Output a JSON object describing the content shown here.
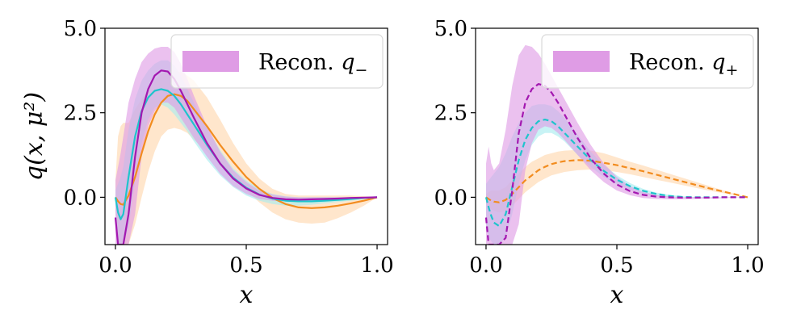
{
  "chart_data": [
    {
      "type": "line",
      "panel": "left",
      "xlabel": "x",
      "ylabel": "q(x, μ²)",
      "xlim": [
        -0.04,
        1.04
      ],
      "ylim": [
        -1.4,
        5.0
      ],
      "xticks": [
        0.0,
        0.5,
        1.0
      ],
      "xtick_labels": [
        "0.0",
        "0.5",
        "1.0"
      ],
      "yticks": [
        0.0,
        2.5,
        5.0
      ],
      "ytick_labels": [
        "0.0",
        "2.5",
        "5.0"
      ],
      "legend": {
        "label": "Recon. ",
        "symbol": "q",
        "subscript": "−",
        "placement": "top-right",
        "color": "#d98be0"
      },
      "x": [
        0.0,
        0.01,
        0.02,
        0.03,
        0.05,
        0.075,
        0.1,
        0.125,
        0.15,
        0.175,
        0.2,
        0.225,
        0.25,
        0.275,
        0.3,
        0.35,
        0.4,
        0.45,
        0.5,
        0.55,
        0.6,
        0.65,
        0.7,
        0.75,
        0.8,
        0.85,
        0.9,
        0.95,
        1.0
      ],
      "series": [
        {
          "name": "orange",
          "color": "#f28c1f",
          "style": "solid",
          "values": [
            0.0,
            -0.12,
            -0.2,
            -0.22,
            0.05,
            0.6,
            1.3,
            1.95,
            2.45,
            2.8,
            3.0,
            3.05,
            3.0,
            2.85,
            2.6,
            2.1,
            1.55,
            1.05,
            0.6,
            0.25,
            -0.02,
            -0.2,
            -0.3,
            -0.32,
            -0.3,
            -0.25,
            -0.18,
            -0.1,
            0.0
          ],
          "band_low": [
            -0.4,
            -1.4,
            -1.4,
            -1.4,
            -1.4,
            -0.8,
            0.0,
            0.75,
            1.35,
            1.8,
            2.0,
            2.05,
            2.0,
            1.9,
            1.7,
            1.35,
            0.95,
            0.55,
            0.2,
            -0.15,
            -0.45,
            -0.65,
            -0.75,
            -0.78,
            -0.75,
            -0.62,
            -0.45,
            -0.25,
            0.0
          ],
          "band_high": [
            0.5,
            1.8,
            2.1,
            2.2,
            2.2,
            2.6,
            2.9,
            3.2,
            3.45,
            3.65,
            3.75,
            3.75,
            3.7,
            3.6,
            3.45,
            2.95,
            2.3,
            1.6,
            1.0,
            0.55,
            0.25,
            0.1,
            0.05,
            0.05,
            0.05,
            0.05,
            0.05,
            0.03,
            0.0
          ],
          "band_color": "#ffd6ad"
        },
        {
          "name": "cyan",
          "color": "#1fc4cc",
          "style": "solid",
          "values": [
            0.0,
            -0.45,
            -0.65,
            -0.5,
            0.6,
            1.8,
            2.55,
            2.95,
            3.15,
            3.2,
            3.15,
            3.0,
            2.75,
            2.45,
            2.15,
            1.55,
            1.0,
            0.58,
            0.28,
            0.08,
            -0.04,
            -0.1,
            -0.12,
            -0.12,
            -0.1,
            -0.08,
            -0.05,
            -0.02,
            0.0
          ],
          "band_low": [
            -0.3,
            -1.4,
            -1.4,
            -1.4,
            -0.9,
            0.5,
            1.6,
            2.3,
            2.65,
            2.75,
            2.65,
            2.45,
            2.2,
            1.95,
            1.65,
            1.1,
            0.65,
            0.3,
            0.05,
            -0.1,
            -0.2,
            -0.25,
            -0.25,
            -0.22,
            -0.18,
            -0.14,
            -0.1,
            -0.05,
            0.0
          ],
          "band_high": [
            0.2,
            0.4,
            0.6,
            0.9,
            2.0,
            2.9,
            3.45,
            3.75,
            3.95,
            4.05,
            4.05,
            3.9,
            3.6,
            3.2,
            2.8,
            2.05,
            1.4,
            0.85,
            0.5,
            0.25,
            0.1,
            0.03,
            0.0,
            0.0,
            0.0,
            0.0,
            0.0,
            0.0,
            0.0
          ],
          "band_color": "#a6ecef"
        },
        {
          "name": "purple",
          "color": "#a318b0",
          "style": "solid",
          "values": [
            -0.6,
            -1.4,
            -1.4,
            -1.4,
            -0.5,
            1.2,
            2.5,
            3.2,
            3.6,
            3.75,
            3.72,
            3.5,
            3.15,
            2.75,
            2.35,
            1.6,
            1.0,
            0.55,
            0.26,
            0.07,
            -0.02,
            -0.06,
            -0.07,
            -0.06,
            -0.05,
            -0.04,
            -0.02,
            -0.01,
            0.0
          ],
          "band_low": [
            -1.4,
            -1.4,
            -1.4,
            -1.4,
            -1.4,
            -0.5,
            1.2,
            2.1,
            2.55,
            2.8,
            2.8,
            2.65,
            2.35,
            2.05,
            1.75,
            1.2,
            0.7,
            0.33,
            0.1,
            -0.05,
            -0.1,
            -0.12,
            -0.12,
            -0.1,
            -0.08,
            -0.06,
            -0.04,
            -0.02,
            0.0
          ],
          "band_high": [
            0.5,
            0.9,
            1.3,
            1.8,
            2.8,
            3.5,
            4.0,
            4.25,
            4.4,
            4.45,
            4.45,
            4.3,
            3.95,
            3.5,
            3.0,
            2.1,
            1.35,
            0.8,
            0.45,
            0.2,
            0.08,
            0.02,
            0.0,
            0.0,
            0.0,
            0.0,
            0.0,
            0.0,
            0.0
          ],
          "band_color": "#df9be5"
        }
      ]
    },
    {
      "type": "line",
      "panel": "right",
      "xlabel": "x",
      "ylabel": "",
      "xlim": [
        -0.04,
        1.04
      ],
      "ylim": [
        -1.4,
        5.0
      ],
      "xticks": [
        0.0,
        0.5,
        1.0
      ],
      "xtick_labels": [
        "0.0",
        "0.5",
        "1.0"
      ],
      "yticks": [
        0.0,
        2.5,
        5.0
      ],
      "ytick_labels": [
        "0.0",
        "2.5",
        "5.0"
      ],
      "legend": {
        "label": "Recon. ",
        "symbol": "q",
        "subscript": "+",
        "placement": "top-right",
        "color": "#d98be0"
      },
      "x": [
        0.0,
        0.01,
        0.02,
        0.03,
        0.05,
        0.075,
        0.1,
        0.125,
        0.15,
        0.175,
        0.2,
        0.225,
        0.25,
        0.275,
        0.3,
        0.35,
        0.4,
        0.45,
        0.5,
        0.55,
        0.6,
        0.65,
        0.7,
        0.75,
        0.8,
        0.85,
        0.9,
        0.95,
        1.0
      ],
      "series": [
        {
          "name": "orange",
          "color": "#f28c1f",
          "style": "dashed",
          "values": [
            0.0,
            -0.05,
            -0.1,
            -0.13,
            -0.15,
            -0.08,
            0.1,
            0.3,
            0.5,
            0.65,
            0.8,
            0.9,
            0.98,
            1.03,
            1.07,
            1.1,
            1.08,
            1.02,
            0.95,
            0.86,
            0.77,
            0.67,
            0.57,
            0.47,
            0.37,
            0.27,
            0.18,
            0.09,
            0.0
          ],
          "band_low": [
            -0.2,
            -0.3,
            -0.35,
            -0.4,
            -0.45,
            -0.4,
            -0.25,
            -0.05,
            0.15,
            0.3,
            0.45,
            0.55,
            0.65,
            0.7,
            0.75,
            0.8,
            0.82,
            0.8,
            0.75,
            0.68,
            0.6,
            0.52,
            0.44,
            0.36,
            0.28,
            0.2,
            0.13,
            0.06,
            0.0
          ],
          "band_high": [
            0.1,
            0.15,
            0.2,
            0.2,
            0.2,
            0.3,
            0.5,
            0.7,
            0.9,
            1.05,
            1.15,
            1.25,
            1.3,
            1.35,
            1.38,
            1.4,
            1.38,
            1.3,
            1.18,
            1.05,
            0.94,
            0.82,
            0.7,
            0.58,
            0.46,
            0.34,
            0.22,
            0.11,
            0.0
          ],
          "band_color": "#ffd6ad"
        },
        {
          "name": "cyan",
          "color": "#1fc4cc",
          "style": "dashed",
          "values": [
            0.0,
            -0.3,
            -0.55,
            -0.75,
            -0.85,
            -0.5,
            0.3,
            1.1,
            1.7,
            2.05,
            2.25,
            2.3,
            2.25,
            2.1,
            1.9,
            1.5,
            1.1,
            0.78,
            0.52,
            0.33,
            0.19,
            0.1,
            0.04,
            0.01,
            0.0,
            0.0,
            0.0,
            0.0,
            0.0
          ],
          "band_low": [
            -0.8,
            -1.2,
            -1.3,
            -1.4,
            -1.4,
            -1.2,
            -0.5,
            0.4,
            1.1,
            1.55,
            1.8,
            1.9,
            1.9,
            1.8,
            1.65,
            1.25,
            0.9,
            0.6,
            0.38,
            0.22,
            0.1,
            0.03,
            0.0,
            -0.02,
            -0.02,
            -0.01,
            0.0,
            0.0,
            0.0
          ],
          "band_high": [
            0.4,
            0.5,
            0.6,
            0.7,
            0.9,
            1.3,
            1.8,
            2.2,
            2.5,
            2.7,
            2.75,
            2.75,
            2.7,
            2.55,
            2.35,
            1.85,
            1.35,
            0.95,
            0.65,
            0.42,
            0.25,
            0.14,
            0.07,
            0.03,
            0.01,
            0.0,
            0.0,
            0.0,
            0.0
          ],
          "band_color": "#a6ecef"
        },
        {
          "name": "purple",
          "color": "#a318b0",
          "style": "dashed",
          "values": [
            -0.6,
            -1.4,
            -1.4,
            -1.4,
            -1.4,
            -1.2,
            0.2,
            1.9,
            2.8,
            3.2,
            3.35,
            3.3,
            3.1,
            2.8,
            2.45,
            1.75,
            1.15,
            0.7,
            0.38,
            0.18,
            0.07,
            0.02,
            0.0,
            -0.01,
            -0.01,
            -0.01,
            0.0,
            0.0,
            0.0
          ],
          "band_low": [
            -1.4,
            -1.4,
            -1.4,
            -1.4,
            -1.4,
            -1.4,
            -1.4,
            -0.8,
            0.8,
            1.6,
            2.0,
            2.1,
            2.05,
            1.9,
            1.7,
            1.25,
            0.8,
            0.45,
            0.2,
            0.06,
            -0.02,
            -0.05,
            -0.06,
            -0.06,
            -0.05,
            -0.04,
            -0.03,
            -0.01,
            0.0
          ],
          "band_high": [
            1.0,
            1.5,
            1.0,
            0.8,
            1.0,
            2.0,
            3.3,
            4.2,
            4.5,
            4.45,
            4.25,
            3.95,
            3.6,
            3.25,
            2.9,
            2.2,
            1.55,
            1.0,
            0.6,
            0.33,
            0.16,
            0.07,
            0.02,
            0.0,
            0.0,
            0.0,
            0.0,
            0.0,
            0.0
          ],
          "band_color": "#df9be5"
        }
      ]
    }
  ]
}
